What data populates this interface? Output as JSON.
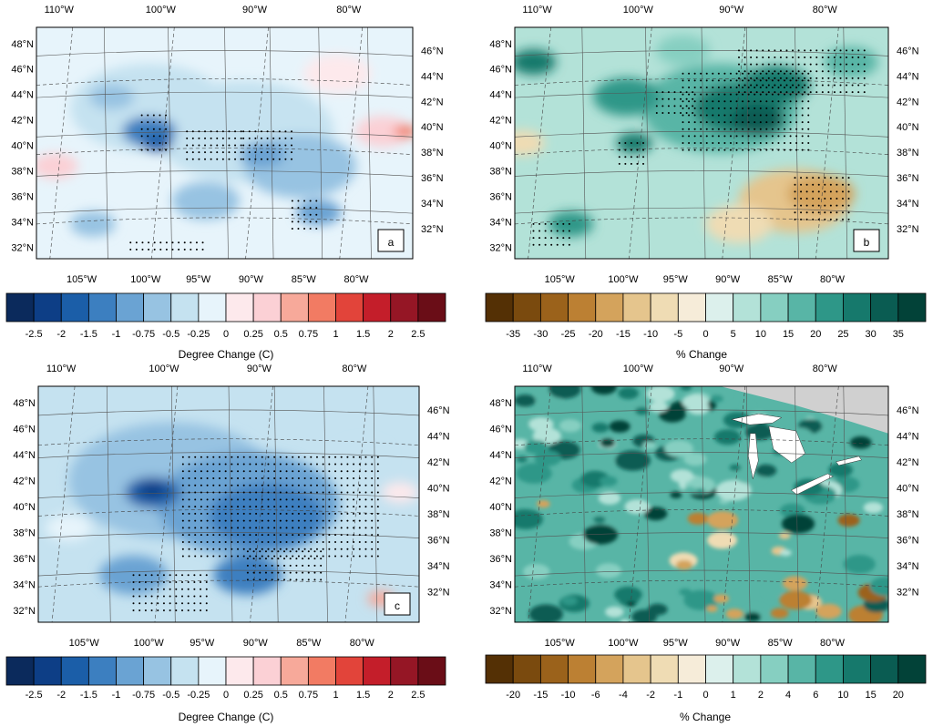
{
  "panels": [
    {
      "letter": "a",
      "type": "temperature",
      "colorbar_title": "Degree Change (C)",
      "colorbar_labels": [
        "-2.5",
        "-2",
        "-1.5",
        "-1",
        "-0.75",
        "-0.5",
        "-0.25",
        "0",
        "0.25",
        "0.5",
        "0.75",
        "1",
        "1.5",
        "2",
        "2.5"
      ],
      "colorbar_colors": [
        "#0b2a5c",
        "#0d3e86",
        "#1b5ea8",
        "#3c7fc0",
        "#6aa3d3",
        "#97c3e2",
        "#c5e2f0",
        "#e7f4fb",
        "#fde9ec",
        "#fbd0d5",
        "#f7a99a",
        "#f27b63",
        "#e2443a",
        "#c41e2a",
        "#951625",
        "#6a0d17"
      ]
    },
    {
      "letter": "b",
      "type": "precip",
      "colorbar_title": "% Change",
      "colorbar_labels": [
        "-35",
        "-30",
        "-25",
        "-20",
        "-15",
        "-10",
        "-5",
        "0",
        "5",
        "10",
        "15",
        "20",
        "25",
        "30",
        "35"
      ],
      "colorbar_colors": [
        "#543005",
        "#7a4a0e",
        "#9b621b",
        "#bc8033",
        "#d4a35c",
        "#e5c58d",
        "#efdcb4",
        "#f6ecd9",
        "#dcf0ec",
        "#b3e2d8",
        "#86cfc1",
        "#58b5a6",
        "#2e9788",
        "#16796c",
        "#0a5c52",
        "#024238"
      ]
    },
    {
      "letter": "c",
      "type": "temperature",
      "colorbar_title": "Degree Change (C)",
      "colorbar_labels": [
        "-2.5",
        "-2",
        "-1.5",
        "-1",
        "-0.75",
        "-0.5",
        "-0.25",
        "0",
        "0.25",
        "0.5",
        "0.75",
        "1",
        "1.5",
        "2",
        "2.5"
      ],
      "colorbar_colors": [
        "#0b2a5c",
        "#0d3e86",
        "#1b5ea8",
        "#3c7fc0",
        "#6aa3d3",
        "#97c3e2",
        "#c5e2f0",
        "#e7f4fb",
        "#fde9ec",
        "#fbd0d5",
        "#f7a99a",
        "#f27b63",
        "#e2443a",
        "#c41e2a",
        "#951625",
        "#6a0d17"
      ]
    },
    {
      "letter": "",
      "type": "precip-fine",
      "colorbar_title": "% Change",
      "colorbar_labels": [
        "-20",
        "-15",
        "-10",
        "-6",
        "-4",
        "-2",
        "-1",
        "0",
        "1",
        "2",
        "4",
        "6",
        "10",
        "15",
        "20"
      ],
      "colorbar_colors": [
        "#543005",
        "#7a4a0e",
        "#9b621b",
        "#bc8033",
        "#d4a35c",
        "#e5c58d",
        "#efdcb4",
        "#f6ecd9",
        "#dcf0ec",
        "#b3e2d8",
        "#86cfc1",
        "#58b5a6",
        "#2e9788",
        "#16796c",
        "#0a5c52",
        "#024238"
      ]
    }
  ],
  "top_lon_labels": [
    "110°W",
    "100°W",
    "90°W",
    "80°W"
  ],
  "bottom_lon_labels": [
    "105°W",
    "100°W",
    "95°W",
    "90°W",
    "85°W",
    "80°W"
  ],
  "left_lat_labels": [
    "48°N",
    "46°N",
    "44°N",
    "42°N",
    "40°N",
    "38°N",
    "36°N",
    "34°N",
    "32°N"
  ],
  "right_lat_labels": [
    "46°N",
    "44°N",
    "42°N",
    "40°N",
    "38°N",
    "36°N",
    "34°N",
    "32°N"
  ]
}
